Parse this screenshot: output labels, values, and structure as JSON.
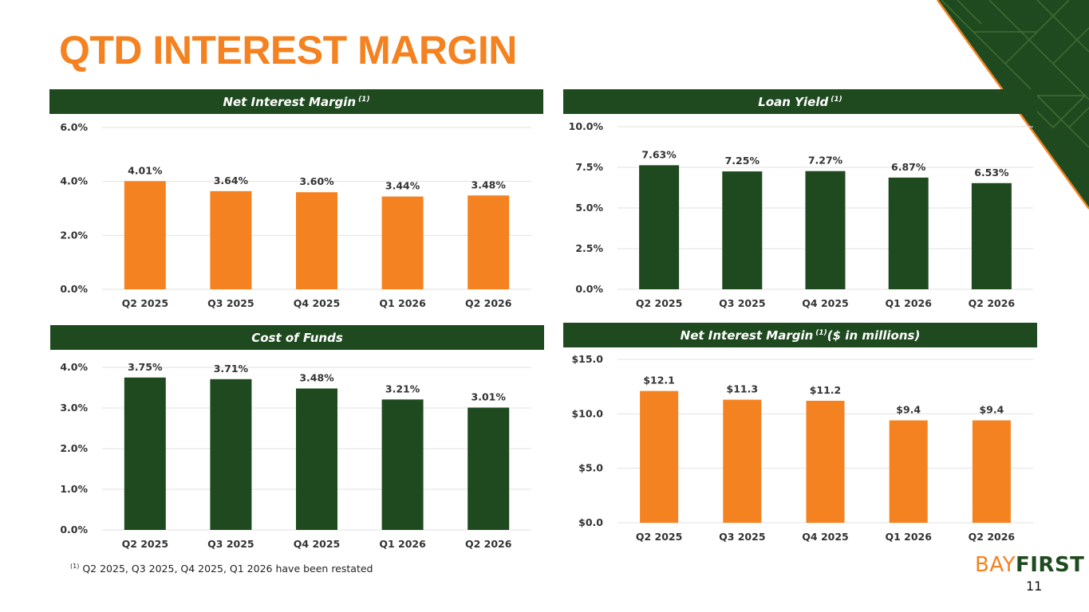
{
  "page": {
    "title": "QTD INTEREST MARGIN",
    "footnote_marker": "(1)",
    "footnote_text": "Q2 2025, Q3 2025, Q4 2025, Q1 2026 have been restated",
    "logo_bay": "BAY",
    "logo_first": "FIRST",
    "page_number": "11"
  },
  "colors": {
    "orange": "#f58220",
    "green": "#1f4a1f",
    "grid": "#e2e2e2",
    "axis_text": "#333333"
  },
  "panels": [
    {
      "header": "Net Interest Margin",
      "header_sup": "(1)",
      "header_suffix": ""
    },
    {
      "header": "Loan Yield",
      "header_sup": "(1)",
      "header_suffix": ""
    },
    {
      "header": "Cost of Funds",
      "header_sup": "",
      "header_suffix": ""
    },
    {
      "header": "Net Interest Margin",
      "header_sup": "(1)",
      "header_suffix": "($ in millions)"
    }
  ],
  "chart_data": [
    {
      "type": "bar",
      "title": "Net Interest Margin (1)",
      "categories": [
        "Q2 2025",
        "Q3 2025",
        "Q4 2025",
        "Q1 2026",
        "Q2 2026"
      ],
      "values": [
        4.01,
        3.64,
        3.6,
        3.44,
        3.48
      ],
      "data_labels": [
        "4.01%",
        "3.64%",
        "3.60%",
        "3.44%",
        "3.48%"
      ],
      "ylim": [
        0,
        6
      ],
      "yticks": [
        0,
        2,
        4,
        6
      ],
      "ytick_labels": [
        "0.0%",
        "2.0%",
        "4.0%",
        "6.0%"
      ],
      "color": "#f58220",
      "grid": true
    },
    {
      "type": "bar",
      "title": "Loan Yield (1)",
      "categories": [
        "Q2 2025",
        "Q3 2025",
        "Q4 2025",
        "Q1 2026",
        "Q2 2026"
      ],
      "values": [
        7.63,
        7.25,
        7.27,
        6.87,
        6.53
      ],
      "data_labels": [
        "7.63%",
        "7.25%",
        "7.27%",
        "6.87%",
        "6.53%"
      ],
      "ylim": [
        0,
        10
      ],
      "yticks": [
        0,
        2.5,
        5,
        7.5,
        10
      ],
      "ytick_labels": [
        "0.0%",
        "2.5%",
        "5.0%",
        "7.5%",
        "10.0%"
      ],
      "color": "#1f4a1f",
      "grid": true
    },
    {
      "type": "bar",
      "title": "Cost of Funds",
      "categories": [
        "Q2 2025",
        "Q3 2025",
        "Q4 2025",
        "Q1 2026",
        "Q2 2026"
      ],
      "values": [
        3.75,
        3.71,
        3.48,
        3.21,
        3.01
      ],
      "data_labels": [
        "3.75%",
        "3.71%",
        "3.48%",
        "3.21%",
        "3.01%"
      ],
      "ylim": [
        0,
        4
      ],
      "yticks": [
        0,
        1,
        2,
        3,
        4
      ],
      "ytick_labels": [
        "0.0%",
        "1.0%",
        "2.0%",
        "3.0%",
        "4.0%"
      ],
      "color": "#1f4a1f",
      "grid": true
    },
    {
      "type": "bar",
      "title": "Net Interest Margin (1)($ in millions)",
      "categories": [
        "Q2 2025",
        "Q3 2025",
        "Q4 2025",
        "Q1 2026",
        "Q2 2026"
      ],
      "values": [
        12.1,
        11.3,
        11.2,
        9.4,
        9.4
      ],
      "data_labels": [
        "$12.1",
        "$11.3",
        "$11.2",
        "$9.4",
        "$9.4"
      ],
      "ylim": [
        0,
        15
      ],
      "yticks": [
        0,
        5,
        10,
        15
      ],
      "ytick_labels": [
        "$0.0",
        "$5.0",
        "$10.0",
        "$15.0"
      ],
      "color": "#f58220",
      "grid": true
    }
  ]
}
